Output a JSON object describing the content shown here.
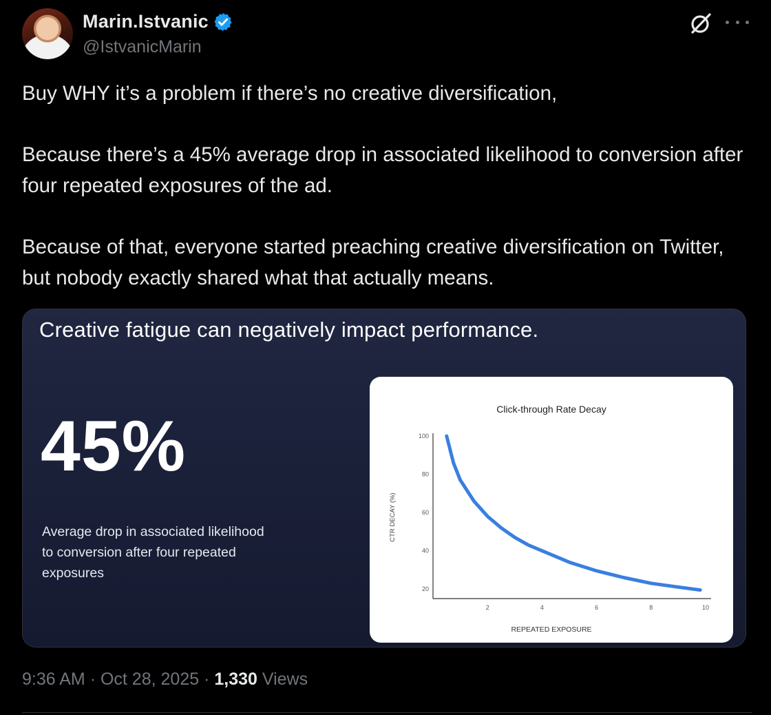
{
  "author": {
    "display_name": "Marin.Istvanic",
    "handle": "@IstvanicMarin",
    "verified_color": "#1d9bf0"
  },
  "tweet": {
    "paragraphs": [
      "Buy WHY it’s a problem if there’s no creative diversification,",
      "Because there’s a 45% average drop in associated likelihood to conversion after four repeated exposures of the ad.",
      "Because of that, everyone started preaching creative diversification on Twitter, but nobody exactly shared what that actually means."
    ]
  },
  "media": {
    "slide_title": "Creative fatigue can negatively impact performance.",
    "stat_value": "45%",
    "stat_caption": "Average drop in associated likelihood to conversion after four repeated exposures"
  },
  "chart_data": {
    "type": "line",
    "title": "Click-through Rate Decay",
    "xlabel": "REPEATED EXPOSURE",
    "ylabel": "CTR DECAY (%)",
    "x_ticks": [
      2,
      4,
      6,
      8,
      10
    ],
    "y_ticks": [
      20,
      40,
      60,
      80,
      100
    ],
    "xlim": [
      0,
      10
    ],
    "ylim": [
      15,
      100
    ],
    "line_color": "#3a7fe0",
    "series": [
      {
        "x": [
          0.5,
          0.75,
          1,
          1.5,
          2,
          2.5,
          3,
          3.5,
          4,
          5,
          6,
          7,
          8,
          9,
          9.8
        ],
        "values": [
          100,
          86,
          77,
          66,
          58,
          52,
          47,
          43,
          40,
          34,
          29.5,
          26,
          23,
          21,
          19.5
        ]
      }
    ]
  },
  "meta": {
    "time": "9:36 AM",
    "date": "Oct 28, 2025",
    "separator": "·",
    "views_count": "1,330",
    "views_label": "Views"
  }
}
